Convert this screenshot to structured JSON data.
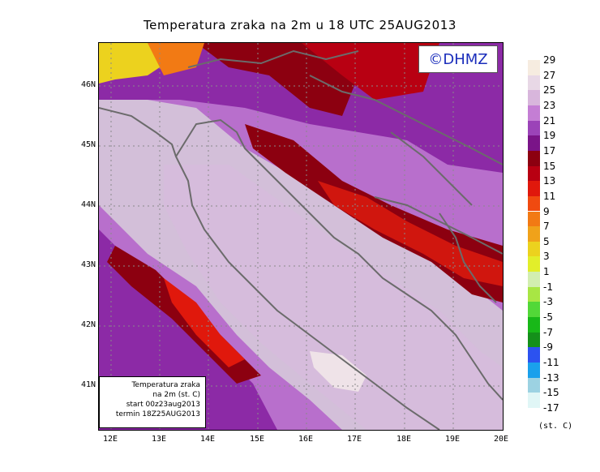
{
  "title": "Temperatura zraka na 2m u 18 UTC 25AUG2013",
  "badge": "©DHMZ",
  "info_lines": [
    "Temperatura zraka",
    "na 2m (st. C)",
    "start 00z23aug2013",
    "termin 18Z25AUG2013"
  ],
  "lat_labels": [
    "46N",
    "45N",
    "44N",
    "43N",
    "42N",
    "41N"
  ],
  "lon_labels": [
    "12E",
    "13E",
    "14E",
    "15E",
    "16E",
    "17E",
    "18E",
    "19E",
    "20E"
  ],
  "colorbar": {
    "units": "(st. C)",
    "labels": [
      "29",
      "27",
      "25",
      "23",
      "21",
      "19",
      "17",
      "15",
      "13",
      "11",
      "9",
      "7",
      "5",
      "3",
      "1",
      "-1",
      "-3",
      "-5",
      "-7",
      "-9",
      "-11",
      "-13",
      "-15",
      "-17"
    ],
    "colors": [
      "#f6ece0",
      "#e8d8e6",
      "#d8b6dc",
      "#c47ed4",
      "#9b43b8",
      "#7a1488",
      "#8c0010",
      "#b80012",
      "#e0180c",
      "#f04a10",
      "#f27a14",
      "#f0a21a",
      "#ecd21e",
      "#e2ee2a",
      "#d2eeb0",
      "#a8e644",
      "#52d838",
      "#18b818",
      "#14901a",
      "#2c52f0",
      "#1aa0ec",
      "#9cd2e2",
      "#e0f6f6"
    ]
  },
  "colors": {
    "land_outline": "#6b6b6b",
    "grid": "#8a8a8a",
    "badge_text": "#1a2dbb"
  }
}
